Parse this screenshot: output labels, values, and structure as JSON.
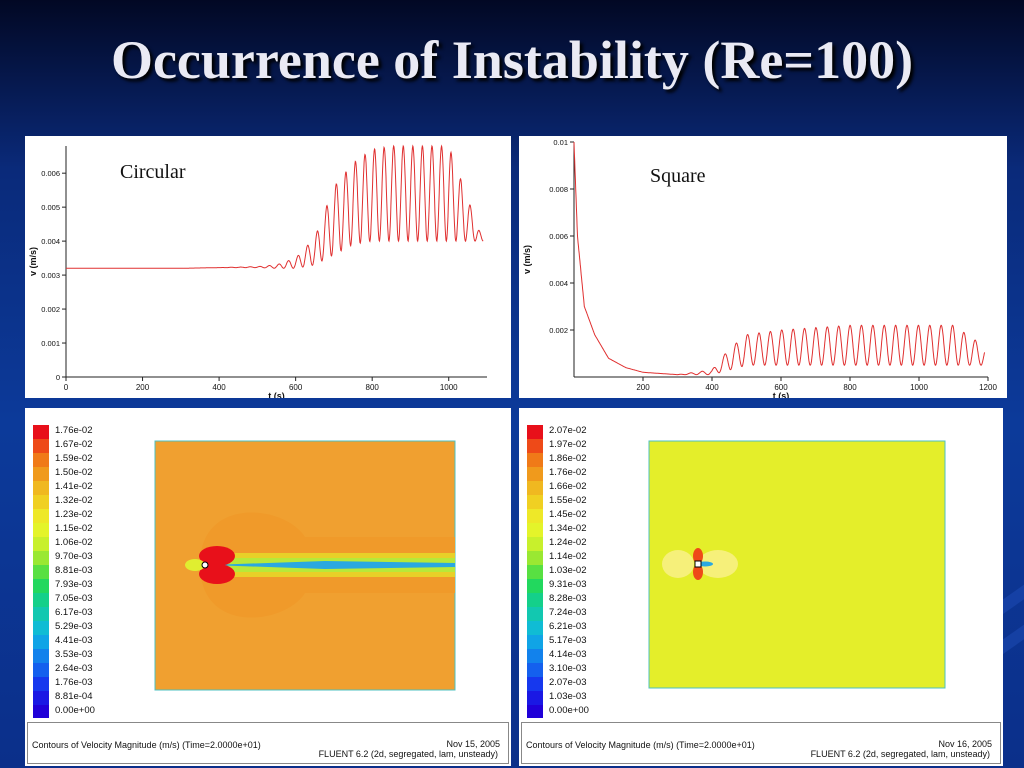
{
  "slide": {
    "title": "Occurrence of Instability (Re=100)"
  },
  "chart_data": [
    {
      "type": "line",
      "label": "Circular",
      "xlabel": "t (s)",
      "ylabel": "v (m/s)",
      "xlim": [
        0,
        1100
      ],
      "ylim": [
        0,
        0.0068
      ],
      "xticks": [
        "0",
        "200",
        "400",
        "600",
        "800",
        "1000"
      ],
      "yticks": [
        "0",
        "0.001",
        "0.002",
        "0.003",
        "0.004",
        "0.005",
        "0.006"
      ],
      "x": [
        0,
        100,
        200,
        300,
        400,
        500,
        550,
        600,
        650,
        700,
        750,
        800,
        850,
        900,
        950,
        1000,
        1090
      ],
      "y": [
        0.0032,
        0.0032,
        0.0032,
        0.0032,
        0.00322,
        0.00325,
        0.0033,
        0.0035,
        0.0041,
        0.0056,
        0.0063,
        0.0067,
        0.0068,
        0.0068,
        0.0068,
        0.0068,
        0.004
      ],
      "envelope_min": [
        0.0032,
        0.0032,
        0.0032,
        0.0032,
        0.00322,
        0.00322,
        0.0032,
        0.0032,
        0.0033,
        0.0036,
        0.0039,
        0.004,
        0.004,
        0.004,
        0.004,
        0.004,
        0.004
      ],
      "color": "#e03030"
    },
    {
      "type": "line",
      "label": "Square",
      "xlabel": "t (s)",
      "ylabel": "v (m/s)",
      "xlim": [
        0,
        1200
      ],
      "ylim": [
        0,
        0.01
      ],
      "xticks": [
        "200",
        "400",
        "600",
        "800",
        "1000",
        "1200"
      ],
      "yticks": [
        "0.002",
        "0.004",
        "0.006",
        "0.008",
        "0.01"
      ],
      "x": [
        0,
        10,
        30,
        60,
        100,
        150,
        200,
        300,
        400,
        450,
        500,
        600,
        700,
        800,
        900,
        1000,
        1100,
        1190
      ],
      "y": [
        0.01,
        0.006,
        0.003,
        0.0018,
        0.0008,
        0.0004,
        0.0002,
        0.0001,
        0.0003,
        0.0012,
        0.0018,
        0.002,
        0.0021,
        0.0022,
        0.0022,
        0.0022,
        0.0022,
        0.0013
      ],
      "envelope_min": [
        0.01,
        0.006,
        0.003,
        0.0018,
        0.0008,
        0.0004,
        0.0002,
        0.0001,
        0.0001,
        0.0003,
        0.0005,
        0.0005,
        0.0005,
        0.0005,
        0.0005,
        0.0005,
        0.0005,
        0.0005
      ],
      "color": "#e03030"
    },
    {
      "type": "heatmap",
      "legend": [
        "1.76e-02",
        "1.67e-02",
        "1.59e-02",
        "1.50e-02",
        "1.41e-02",
        "1.32e-02",
        "1.23e-02",
        "1.15e-02",
        "1.06e-02",
        "9.70e-03",
        "8.81e-03",
        "7.93e-03",
        "7.05e-03",
        "6.17e-03",
        "5.29e-03",
        "4.41e-03",
        "3.53e-03",
        "2.64e-03",
        "1.76e-03",
        "8.81e-04",
        "0.00e+00"
      ],
      "footer_left": "Contours of Velocity Magnitude (m/s)  (Time=2.0000e+01)",
      "footer_date": "Nov 15, 2005",
      "footer_solver": "FLUENT 6.2 (2d, segregated, lam, unsteady)"
    },
    {
      "type": "heatmap",
      "legend": [
        "2.07e-02",
        "1.97e-02",
        "1.86e-02",
        "1.76e-02",
        "1.66e-02",
        "1.55e-02",
        "1.45e-02",
        "1.34e-02",
        "1.24e-02",
        "1.14e-02",
        "1.03e-02",
        "9.31e-03",
        "8.28e-03",
        "7.24e-03",
        "6.21e-03",
        "5.17e-03",
        "4.14e-03",
        "3.10e-03",
        "2.07e-03",
        "1.03e-03",
        "0.00e+00"
      ],
      "footer_left": "Contours of Velocity Magnitude (m/s)  (Time=2.0000e+01)",
      "footer_date": "Nov 16, 2005",
      "footer_solver": "FLUENT 6.2 (2d, segregated, lam, unsteady)"
    }
  ],
  "colormap": [
    "#e8101a",
    "#ee4a18",
    "#f07a18",
    "#f09a1c",
    "#f0b820",
    "#f0d022",
    "#eee828",
    "#e4f42a",
    "#c8f02c",
    "#9ae832",
    "#58e042",
    "#22d85e",
    "#14d08a",
    "#12c8b0",
    "#10bcd4",
    "#10a4e6",
    "#1282ec",
    "#1460ee",
    "#1638ee",
    "#1a18e4",
    "#2000d8"
  ]
}
